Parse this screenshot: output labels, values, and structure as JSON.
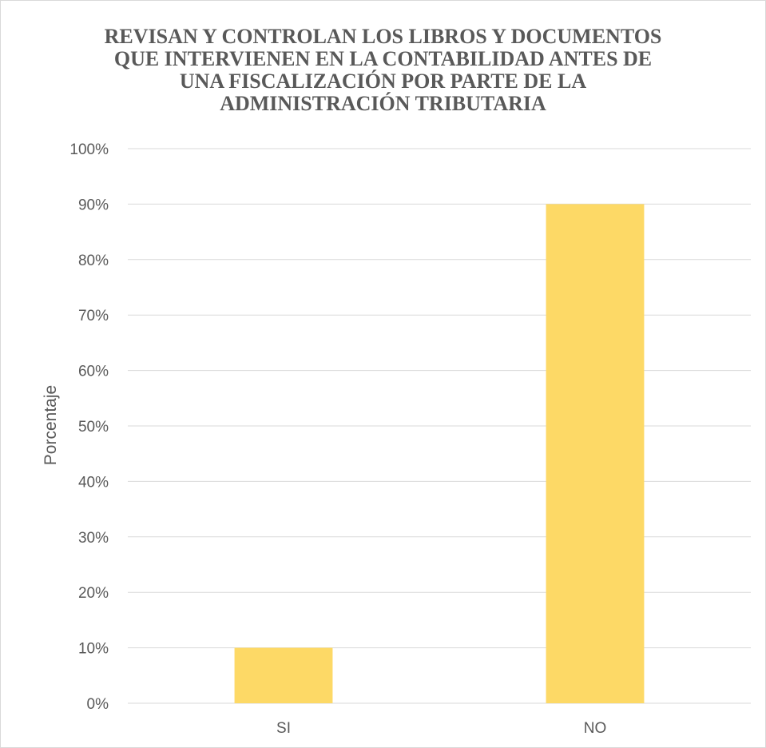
{
  "chart_data": {
    "type": "bar",
    "title_lines": [
      "REVISAN Y CONTROLAN LOS LIBROS Y DOCUMENTOS",
      "QUE INTERVIENEN EN LA CONTABILIDAD ANTES DE",
      "UNA FISCALIZACIÓN POR PARTE DE LA",
      "ADMINISTRACIÓN TRIBUTARIA"
    ],
    "xlabel": "",
    "ylabel": "Porcentaje",
    "categories": [
      "SI",
      "NO"
    ],
    "values": [
      0.1,
      0.9
    ],
    "ylim": [
      0,
      1
    ],
    "yticks": [
      0,
      0.1,
      0.2,
      0.3,
      0.4,
      0.5,
      0.6,
      0.7,
      0.8,
      0.9,
      1.0
    ],
    "ytick_labels": [
      "0%",
      "10%",
      "20%",
      "30%",
      "40%",
      "50%",
      "60%",
      "70%",
      "80%",
      "90%",
      "100%"
    ],
    "grid": true,
    "legend": "none",
    "bar_color": "#fdd966",
    "grid_color": "#d9d9d9",
    "text_color": "#595959"
  }
}
